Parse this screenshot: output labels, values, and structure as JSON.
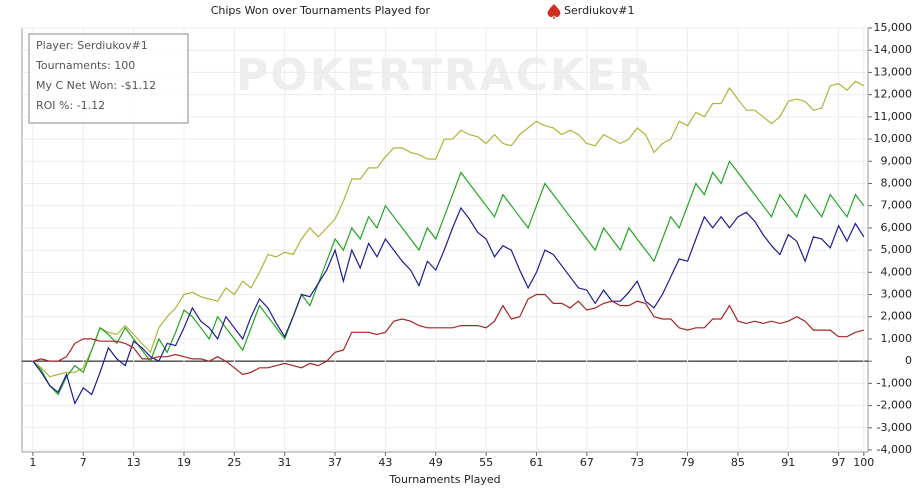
{
  "chart_data": {
    "type": "line",
    "title": "Chips Won over Tournaments Played for",
    "player": "Serdiukov#1",
    "watermark": "POKERTRACKER",
    "stats": [
      "Player: Serdiukov#1",
      "Tournaments: 100",
      "My C Net Won: -$1.12",
      "ROI %: -1.12"
    ],
    "x_label": "Tournaments Played",
    "x": [
      1,
      2,
      3,
      4,
      5,
      6,
      7,
      8,
      9,
      10,
      11,
      12,
      13,
      14,
      15,
      16,
      17,
      18,
      19,
      20,
      21,
      22,
      23,
      24,
      25,
      26,
      27,
      28,
      29,
      30,
      31,
      32,
      33,
      34,
      35,
      36,
      37,
      38,
      39,
      40,
      41,
      42,
      43,
      44,
      45,
      46,
      47,
      48,
      49,
      50,
      51,
      52,
      53,
      54,
      55,
      56,
      57,
      58,
      59,
      60,
      61,
      62,
      63,
      64,
      65,
      66,
      67,
      68,
      69,
      70,
      71,
      72,
      73,
      74,
      75,
      76,
      77,
      78,
      79,
      80,
      81,
      82,
      83,
      84,
      85,
      86,
      87,
      88,
      89,
      90,
      91,
      92,
      93,
      94,
      95,
      96,
      97,
      98,
      99,
      100
    ],
    "series": [
      {
        "color": "#b3b33a",
        "values": [
          0,
          -300,
          -700,
          -600,
          -500,
          -500,
          -300,
          500,
          1500,
          1300,
          1200,
          1600,
          1200,
          800,
          400,
          1500,
          2000,
          2400,
          3000,
          3100,
          2900,
          2800,
          2700,
          3300,
          3000,
          3600,
          3300,
          4000,
          4800,
          4700,
          4900,
          4800,
          5500,
          6000,
          5600,
          6000,
          6400,
          7200,
          8200,
          8200,
          8700,
          8700,
          9200,
          9600,
          9600,
          9400,
          9300,
          9100,
          9100,
          10000,
          10000,
          10400,
          10200,
          10100,
          9800,
          10200,
          9800,
          9700,
          10200,
          10500,
          10800,
          10600,
          10500,
          10200,
          10400,
          10200,
          9800,
          9700,
          10200,
          10000,
          9800,
          10000,
          10500,
          10200,
          9400,
          9800,
          10000,
          10800,
          10600,
          11200,
          11000,
          11600,
          11600,
          12300,
          11800,
          11300,
          11300,
          11000,
          10700,
          11000,
          11700,
          11800,
          11700,
          11300,
          11400,
          12400,
          12500,
          12200,
          12600,
          12400
        ]
      },
      {
        "color": "#22a522",
        "values": [
          0,
          -400,
          -1100,
          -1500,
          -700,
          -200,
          -500,
          500,
          1500,
          1200,
          800,
          1500,
          1000,
          500,
          0,
          1000,
          400,
          1300,
          2300,
          2000,
          1500,
          1000,
          2000,
          1500,
          1000,
          500,
          1500,
          2500,
          2000,
          1500,
          1000,
          2000,
          3000,
          2500,
          3500,
          4500,
          5500,
          5000,
          6000,
          5500,
          6500,
          6000,
          7000,
          6500,
          6000,
          5500,
          5000,
          6000,
          5500,
          6500,
          7500,
          8500,
          8000,
          7500,
          7000,
          6500,
          7500,
          7000,
          6500,
          6000,
          7000,
          8000,
          7500,
          7000,
          6500,
          6000,
          5500,
          5000,
          6000,
          5500,
          5000,
          6000,
          5500,
          5000,
          4500,
          5500,
          6500,
          6000,
          7000,
          8000,
          7500,
          8500,
          8000,
          9000,
          8500,
          8000,
          7500,
          7000,
          6500,
          7500,
          7000,
          6500,
          7500,
          7000,
          6500,
          7500,
          7000,
          6500,
          7500,
          7000
        ]
      },
      {
        "color": "#1c1c96",
        "values": [
          0,
          -500,
          -1100,
          -1400,
          -600,
          -1900,
          -1200,
          -1500,
          -500,
          600,
          100,
          -200,
          900,
          600,
          200,
          0,
          800,
          700,
          1500,
          2400,
          1800,
          1500,
          1000,
          2000,
          1500,
          1000,
          2000,
          2800,
          2400,
          1700,
          1100,
          2000,
          3000,
          2900,
          3500,
          4100,
          5000,
          3600,
          5000,
          4200,
          5300,
          4700,
          5500,
          5000,
          4500,
          4100,
          3400,
          4500,
          4100,
          5000,
          6000,
          6900,
          6400,
          5800,
          5500,
          4700,
          5200,
          5000,
          4100,
          3300,
          4000,
          5000,
          4800,
          4300,
          3800,
          3300,
          3200,
          2600,
          3200,
          2700,
          2700,
          3100,
          3600,
          2700,
          2400,
          3000,
          3800,
          4600,
          4500,
          5500,
          6500,
          6000,
          6500,
          6000,
          6500,
          6700,
          6300,
          5700,
          5200,
          4800,
          5700,
          5400,
          4500,
          5600,
          5500,
          5100,
          6100,
          5400,
          6200,
          5600
        ]
      },
      {
        "color": "#a82424",
        "values": [
          0,
          100,
          0,
          0,
          200,
          800,
          1000,
          1000,
          900,
          900,
          900,
          800,
          600,
          100,
          100,
          200,
          200,
          300,
          200,
          100,
          100,
          0,
          200,
          0,
          -300,
          -600,
          -500,
          -300,
          -300,
          -200,
          -100,
          -200,
          -300,
          -100,
          -200,
          0,
          400,
          500,
          1300,
          1300,
          1300,
          1200,
          1300,
          1800,
          1900,
          1800,
          1600,
          1500,
          1500,
          1500,
          1500,
          1600,
          1600,
          1600,
          1500,
          1800,
          2500,
          1900,
          2000,
          2800,
          3000,
          3000,
          2600,
          2600,
          2400,
          2700,
          2300,
          2400,
          2600,
          2700,
          2500,
          2500,
          2700,
          2600,
          2000,
          1900,
          1900,
          1500,
          1400,
          1500,
          1500,
          1900,
          1900,
          2500,
          1800,
          1700,
          1800,
          1700,
          1800,
          1700,
          1800,
          2000,
          1800,
          1400,
          1400,
          1400,
          1100,
          1100,
          1300,
          1400
        ]
      }
    ],
    "xlim": [
      -0.3,
      100.5
    ],
    "xticks": [
      1,
      7,
      13,
      19,
      25,
      31,
      37,
      43,
      49,
      55,
      61,
      67,
      73,
      79,
      85,
      91,
      97,
      100
    ],
    "ylim": [
      -4000,
      15000
    ],
    "yticks": [
      {
        "value": -4000,
        "label": "-4,000"
      },
      {
        "value": -3000,
        "label": "-3,000"
      },
      {
        "value": -2000,
        "label": "-2,000"
      },
      {
        "value": -1000,
        "label": "-1,000"
      },
      0,
      {
        "value": 1000,
        "label": "1,000"
      },
      {
        "value": 2000,
        "label": "2,000"
      },
      {
        "value": 3000,
        "label": "3,000"
      },
      {
        "value": 4000,
        "label": "4,000"
      },
      {
        "value": 5000,
        "label": "5,000"
      },
      {
        "value": 6000,
        "label": "6,000"
      },
      {
        "value": 7000,
        "label": "7,000"
      },
      {
        "value": 8000,
        "label": "8,000"
      },
      {
        "value": 9000,
        "label": "9,000"
      },
      {
        "value": 10000,
        "label": "10,000"
      },
      {
        "value": 11000,
        "label": "11,000"
      },
      {
        "value": 12000,
        "label": "12,000"
      },
      {
        "value": 13000,
        "label": "13,000"
      },
      {
        "value": 14000,
        "label": "14,000"
      },
      {
        "value": 15000,
        "label": "15,000"
      }
    ],
    "grid": true
  }
}
